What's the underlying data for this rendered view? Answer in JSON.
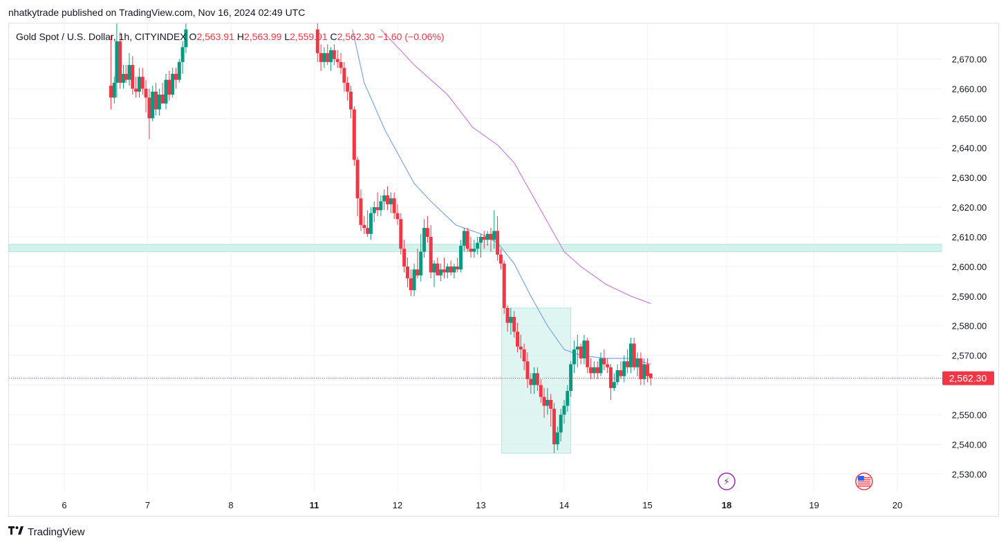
{
  "header": {
    "publisher_line": "nhatkytrade published on TradingView.com, Nov 16, 2024 02:49 UTC"
  },
  "legend": {
    "symbol": "Gold Spot / U.S. Dollar, 1h, CITYINDEX",
    "open_key": "O",
    "open": "2,563.91",
    "high_key": "H",
    "high": "2,563.99",
    "low_key": "L",
    "low": "2,559.91",
    "close_key": "C",
    "close": "2,562.30",
    "change": "−1.60 (−0.06%)"
  },
  "footer": {
    "brand": "TradingView",
    "logo_icon": "tradingview-logo-icon"
  },
  "colors": {
    "up": "#089981",
    "down": "#f23645",
    "ma_fast": "#7aa5f0",
    "ma_slow": "#d07ae3",
    "zone_fill": "#d4f2ec",
    "zone_stroke": "#b3e6da",
    "price_line": "#f23645",
    "grid": "#f0f3fa",
    "axis_text": "#131722"
  },
  "chart_data": {
    "type": "candlestick",
    "timeframe": "1h",
    "ylim": [
      2524,
      2682
    ],
    "y_ticks": [
      2530,
      2540,
      2550,
      2560,
      2570,
      2580,
      2590,
      2600,
      2610,
      2620,
      2630,
      2640,
      2650,
      2660,
      2670
    ],
    "x_ticks": [
      {
        "label": "6",
        "pos": 0.0,
        "bold": false
      },
      {
        "label": "7",
        "pos": 1.0,
        "bold": false
      },
      {
        "label": "8",
        "pos": 2.0,
        "bold": false
      },
      {
        "label": "11",
        "pos": 3.0,
        "bold": true
      },
      {
        "label": "12",
        "pos": 4.0,
        "bold": false
      },
      {
        "label": "13",
        "pos": 5.0,
        "bold": false
      },
      {
        "label": "14",
        "pos": 6.0,
        "bold": false
      },
      {
        "label": "15",
        "pos": 7.0,
        "bold": false
      },
      {
        "label": "18",
        "pos": 7.95,
        "bold": true
      },
      {
        "label": "19",
        "pos": 9.0,
        "bold": false
      },
      {
        "label": "20",
        "pos": 10.0,
        "bold": false
      }
    ],
    "last_price": 2562.3,
    "last_price_label": "2,562.30",
    "candles": [
      {
        "t": 0.56,
        "o": 2661,
        "h": 2678,
        "l": 2653,
        "c": 2657
      },
      {
        "t": 0.6,
        "o": 2657,
        "h": 2664,
        "l": 2655,
        "c": 2662
      },
      {
        "t": 0.63,
        "o": 2662,
        "h": 2682,
        "l": 2657,
        "c": 2676
      },
      {
        "t": 0.67,
        "o": 2676,
        "h": 2679,
        "l": 2660,
        "c": 2662
      },
      {
        "t": 0.71,
        "o": 2662,
        "h": 2668,
        "l": 2660,
        "c": 2665
      },
      {
        "t": 0.74,
        "o": 2665,
        "h": 2668,
        "l": 2662,
        "c": 2663
      },
      {
        "t": 0.78,
        "o": 2663,
        "h": 2672,
        "l": 2661,
        "c": 2668
      },
      {
        "t": 0.82,
        "o": 2668,
        "h": 2671,
        "l": 2658,
        "c": 2660
      },
      {
        "t": 0.86,
        "o": 2660,
        "h": 2664,
        "l": 2657,
        "c": 2659
      },
      {
        "t": 0.9,
        "o": 2659,
        "h": 2667,
        "l": 2657,
        "c": 2664
      },
      {
        "t": 0.94,
        "o": 2664,
        "h": 2667,
        "l": 2658,
        "c": 2660
      },
      {
        "t": 0.98,
        "o": 2660,
        "h": 2663,
        "l": 2652,
        "c": 2657
      },
      {
        "t": 1.02,
        "o": 2657,
        "h": 2660,
        "l": 2643,
        "c": 2650
      },
      {
        "t": 1.06,
        "o": 2650,
        "h": 2661,
        "l": 2649,
        "c": 2659
      },
      {
        "t": 1.1,
        "o": 2659,
        "h": 2662,
        "l": 2651,
        "c": 2653
      },
      {
        "t": 1.14,
        "o": 2653,
        "h": 2660,
        "l": 2651,
        "c": 2658
      },
      {
        "t": 1.18,
        "o": 2658,
        "h": 2662,
        "l": 2656,
        "c": 2655
      },
      {
        "t": 1.22,
        "o": 2655,
        "h": 2665,
        "l": 2653,
        "c": 2663
      },
      {
        "t": 1.26,
        "o": 2663,
        "h": 2666,
        "l": 2656,
        "c": 2658
      },
      {
        "t": 1.3,
        "o": 2658,
        "h": 2667,
        "l": 2657,
        "c": 2665
      },
      {
        "t": 1.34,
        "o": 2665,
        "h": 2667,
        "l": 2660,
        "c": 2663
      },
      {
        "t": 1.38,
        "o": 2663,
        "h": 2670,
        "l": 2662,
        "c": 2669
      },
      {
        "t": 1.42,
        "o": 2669,
        "h": 2676,
        "l": 2665,
        "c": 2674
      },
      {
        "t": 1.46,
        "o": 2674,
        "h": 2682,
        "l": 2672,
        "c": 2680
      },
      {
        "t": 3.04,
        "o": 2680,
        "h": 2682,
        "l": 2669,
        "c": 2672
      },
      {
        "t": 3.08,
        "o": 2672,
        "h": 2675,
        "l": 2666,
        "c": 2669
      },
      {
        "t": 3.12,
        "o": 2669,
        "h": 2674,
        "l": 2667,
        "c": 2672
      },
      {
        "t": 3.16,
        "o": 2672,
        "h": 2675,
        "l": 2668,
        "c": 2669
      },
      {
        "t": 3.2,
        "o": 2669,
        "h": 2674,
        "l": 2666,
        "c": 2673
      },
      {
        "t": 3.24,
        "o": 2673,
        "h": 2675,
        "l": 2668,
        "c": 2670
      },
      {
        "t": 3.28,
        "o": 2670,
        "h": 2673,
        "l": 2667,
        "c": 2669
      },
      {
        "t": 3.32,
        "o": 2669,
        "h": 2672,
        "l": 2665,
        "c": 2667
      },
      {
        "t": 3.36,
        "o": 2667,
        "h": 2669,
        "l": 2659,
        "c": 2662
      },
      {
        "t": 3.4,
        "o": 2662,
        "h": 2664,
        "l": 2656,
        "c": 2659
      },
      {
        "t": 3.44,
        "o": 2659,
        "h": 2661,
        "l": 2650,
        "c": 2653
      },
      {
        "t": 3.48,
        "o": 2653,
        "h": 2654,
        "l": 2634,
        "c": 2636
      },
      {
        "t": 3.52,
        "o": 2636,
        "h": 2637,
        "l": 2617,
        "c": 2623
      },
      {
        "t": 3.56,
        "o": 2623,
        "h": 2626,
        "l": 2612,
        "c": 2614
      },
      {
        "t": 3.6,
        "o": 2614,
        "h": 2617,
        "l": 2611,
        "c": 2613
      },
      {
        "t": 3.64,
        "o": 2613,
        "h": 2619,
        "l": 2610,
        "c": 2611
      },
      {
        "t": 3.68,
        "o": 2611,
        "h": 2620,
        "l": 2609,
        "c": 2618
      },
      {
        "t": 3.72,
        "o": 2618,
        "h": 2622,
        "l": 2615,
        "c": 2620
      },
      {
        "t": 3.76,
        "o": 2620,
        "h": 2625,
        "l": 2617,
        "c": 2619
      },
      {
        "t": 3.8,
        "o": 2619,
        "h": 2624,
        "l": 2617,
        "c": 2622
      },
      {
        "t": 3.84,
        "o": 2622,
        "h": 2626,
        "l": 2619,
        "c": 2624
      },
      {
        "t": 3.88,
        "o": 2624,
        "h": 2627,
        "l": 2619,
        "c": 2621
      },
      {
        "t": 3.92,
        "o": 2621,
        "h": 2625,
        "l": 2618,
        "c": 2623
      },
      {
        "t": 3.96,
        "o": 2623,
        "h": 2625,
        "l": 2616,
        "c": 2618
      },
      {
        "t": 4.0,
        "o": 2618,
        "h": 2621,
        "l": 2614,
        "c": 2616
      },
      {
        "t": 4.04,
        "o": 2616,
        "h": 2618,
        "l": 2604,
        "c": 2606
      },
      {
        "t": 4.08,
        "o": 2606,
        "h": 2609,
        "l": 2598,
        "c": 2600
      },
      {
        "t": 4.12,
        "o": 2600,
        "h": 2603,
        "l": 2593,
        "c": 2596
      },
      {
        "t": 4.16,
        "o": 2596,
        "h": 2599,
        "l": 2590,
        "c": 2592
      },
      {
        "t": 4.2,
        "o": 2592,
        "h": 2601,
        "l": 2590,
        "c": 2599
      },
      {
        "t": 4.24,
        "o": 2599,
        "h": 2606,
        "l": 2596,
        "c": 2597
      },
      {
        "t": 4.28,
        "o": 2597,
        "h": 2611,
        "l": 2595,
        "c": 2605
      },
      {
        "t": 4.32,
        "o": 2605,
        "h": 2616,
        "l": 2603,
        "c": 2613
      },
      {
        "t": 4.36,
        "o": 2613,
        "h": 2617,
        "l": 2608,
        "c": 2610
      },
      {
        "t": 4.4,
        "o": 2610,
        "h": 2614,
        "l": 2596,
        "c": 2598
      },
      {
        "t": 4.44,
        "o": 2598,
        "h": 2602,
        "l": 2593,
        "c": 2601
      },
      {
        "t": 4.48,
        "o": 2601,
        "h": 2603,
        "l": 2597,
        "c": 2597
      },
      {
        "t": 4.52,
        "o": 2597,
        "h": 2601,
        "l": 2595,
        "c": 2599
      },
      {
        "t": 4.56,
        "o": 2599,
        "h": 2603,
        "l": 2596,
        "c": 2598
      },
      {
        "t": 4.6,
        "o": 2598,
        "h": 2601,
        "l": 2596,
        "c": 2600
      },
      {
        "t": 4.64,
        "o": 2600,
        "h": 2602,
        "l": 2597,
        "c": 2598
      },
      {
        "t": 4.68,
        "o": 2598,
        "h": 2601,
        "l": 2596,
        "c": 2600
      },
      {
        "t": 4.72,
        "o": 2600,
        "h": 2603,
        "l": 2598,
        "c": 2599
      },
      {
        "t": 4.76,
        "o": 2599,
        "h": 2609,
        "l": 2598,
        "c": 2607
      },
      {
        "t": 4.8,
        "o": 2607,
        "h": 2613,
        "l": 2605,
        "c": 2612
      },
      {
        "t": 4.84,
        "o": 2612,
        "h": 2613,
        "l": 2605,
        "c": 2606
      },
      {
        "t": 4.88,
        "o": 2606,
        "h": 2610,
        "l": 2603,
        "c": 2605
      },
      {
        "t": 4.92,
        "o": 2605,
        "h": 2609,
        "l": 2603,
        "c": 2606
      },
      {
        "t": 4.96,
        "o": 2606,
        "h": 2610,
        "l": 2604,
        "c": 2608
      },
      {
        "t": 5.0,
        "o": 2608,
        "h": 2611,
        "l": 2603,
        "c": 2610
      },
      {
        "t": 5.04,
        "o": 2610,
        "h": 2612,
        "l": 2606,
        "c": 2609
      },
      {
        "t": 5.08,
        "o": 2609,
        "h": 2612,
        "l": 2607,
        "c": 2611
      },
      {
        "t": 5.12,
        "o": 2611,
        "h": 2613,
        "l": 2605,
        "c": 2609
      },
      {
        "t": 5.16,
        "o": 2609,
        "h": 2619,
        "l": 2606,
        "c": 2612
      },
      {
        "t": 5.2,
        "o": 2612,
        "h": 2617,
        "l": 2602,
        "c": 2604
      },
      {
        "t": 5.24,
        "o": 2604,
        "h": 2606,
        "l": 2599,
        "c": 2601
      },
      {
        "t": 5.28,
        "o": 2601,
        "h": 2602,
        "l": 2584,
        "c": 2586
      },
      {
        "t": 5.32,
        "o": 2586,
        "h": 2587,
        "l": 2578,
        "c": 2581
      },
      {
        "t": 5.36,
        "o": 2581,
        "h": 2586,
        "l": 2577,
        "c": 2583
      },
      {
        "t": 5.4,
        "o": 2583,
        "h": 2585,
        "l": 2576,
        "c": 2578
      },
      {
        "t": 5.44,
        "o": 2578,
        "h": 2581,
        "l": 2571,
        "c": 2573
      },
      {
        "t": 5.48,
        "o": 2573,
        "h": 2577,
        "l": 2569,
        "c": 2572
      },
      {
        "t": 5.52,
        "o": 2572,
        "h": 2574,
        "l": 2565,
        "c": 2568
      },
      {
        "t": 5.56,
        "o": 2568,
        "h": 2571,
        "l": 2559,
        "c": 2562
      },
      {
        "t": 5.6,
        "o": 2562,
        "h": 2564,
        "l": 2557,
        "c": 2560
      },
      {
        "t": 5.64,
        "o": 2560,
        "h": 2566,
        "l": 2557,
        "c": 2564
      },
      {
        "t": 5.68,
        "o": 2564,
        "h": 2566,
        "l": 2558,
        "c": 2560
      },
      {
        "t": 5.72,
        "o": 2560,
        "h": 2562,
        "l": 2554,
        "c": 2556
      },
      {
        "t": 5.76,
        "o": 2556,
        "h": 2559,
        "l": 2549,
        "c": 2553
      },
      {
        "t": 5.8,
        "o": 2553,
        "h": 2559,
        "l": 2550,
        "c": 2555
      },
      {
        "t": 5.84,
        "o": 2555,
        "h": 2557,
        "l": 2546,
        "c": 2552
      },
      {
        "t": 5.88,
        "o": 2552,
        "h": 2554,
        "l": 2537,
        "c": 2540
      },
      {
        "t": 5.92,
        "o": 2540,
        "h": 2546,
        "l": 2538,
        "c": 2544
      },
      {
        "t": 5.96,
        "o": 2544,
        "h": 2552,
        "l": 2541,
        "c": 2550
      },
      {
        "t": 6.0,
        "o": 2550,
        "h": 2555,
        "l": 2547,
        "c": 2553
      },
      {
        "t": 6.04,
        "o": 2553,
        "h": 2560,
        "l": 2551,
        "c": 2558
      },
      {
        "t": 6.08,
        "o": 2558,
        "h": 2568,
        "l": 2556,
        "c": 2567
      },
      {
        "t": 6.12,
        "o": 2567,
        "h": 2575,
        "l": 2564,
        "c": 2572
      },
      {
        "t": 6.16,
        "o": 2572,
        "h": 2577,
        "l": 2566,
        "c": 2573
      },
      {
        "t": 6.2,
        "o": 2573,
        "h": 2574,
        "l": 2567,
        "c": 2569
      },
      {
        "t": 6.24,
        "o": 2569,
        "h": 2577,
        "l": 2567,
        "c": 2575
      },
      {
        "t": 6.28,
        "o": 2575,
        "h": 2576,
        "l": 2564,
        "c": 2566
      },
      {
        "t": 6.32,
        "o": 2566,
        "h": 2569,
        "l": 2562,
        "c": 2564
      },
      {
        "t": 6.36,
        "o": 2564,
        "h": 2568,
        "l": 2562,
        "c": 2566
      },
      {
        "t": 6.4,
        "o": 2566,
        "h": 2568,
        "l": 2562,
        "c": 2564
      },
      {
        "t": 6.44,
        "o": 2564,
        "h": 2571,
        "l": 2563,
        "c": 2569
      },
      {
        "t": 6.48,
        "o": 2569,
        "h": 2572,
        "l": 2565,
        "c": 2567
      },
      {
        "t": 6.52,
        "o": 2567,
        "h": 2569,
        "l": 2564,
        "c": 2566
      },
      {
        "t": 6.56,
        "o": 2566,
        "h": 2567,
        "l": 2555,
        "c": 2559
      },
      {
        "t": 6.6,
        "o": 2559,
        "h": 2564,
        "l": 2558,
        "c": 2561
      },
      {
        "t": 6.64,
        "o": 2561,
        "h": 2567,
        "l": 2560,
        "c": 2565
      },
      {
        "t": 6.68,
        "o": 2565,
        "h": 2568,
        "l": 2562,
        "c": 2563
      },
      {
        "t": 6.72,
        "o": 2563,
        "h": 2570,
        "l": 2561,
        "c": 2568
      },
      {
        "t": 6.76,
        "o": 2568,
        "h": 2572,
        "l": 2564,
        "c": 2566
      },
      {
        "t": 6.8,
        "o": 2566,
        "h": 2576,
        "l": 2564,
        "c": 2574
      },
      {
        "t": 6.84,
        "o": 2574,
        "h": 2576,
        "l": 2565,
        "c": 2566
      },
      {
        "t": 6.88,
        "o": 2566,
        "h": 2571,
        "l": 2563,
        "c": 2569
      },
      {
        "t": 6.92,
        "o": 2569,
        "h": 2571,
        "l": 2560,
        "c": 2562
      },
      {
        "t": 6.96,
        "o": 2562,
        "h": 2569,
        "l": 2560,
        "c": 2567
      },
      {
        "t": 7.0,
        "o": 2567,
        "h": 2569,
        "l": 2561,
        "c": 2563
      },
      {
        "t": 7.04,
        "o": 2563.91,
        "h": 2563.99,
        "l": 2559.91,
        "c": 2562.3
      }
    ],
    "ma_fast": [
      [
        3.46,
        2680
      ],
      [
        3.6,
        2662
      ],
      [
        3.85,
        2646
      ],
      [
        4.2,
        2628
      ],
      [
        4.4,
        2622
      ],
      [
        4.7,
        2614
      ],
      [
        5.0,
        2611
      ],
      [
        5.2,
        2608
      ],
      [
        5.4,
        2601
      ],
      [
        5.6,
        2590
      ],
      [
        5.8,
        2580
      ],
      [
        6.0,
        2572
      ],
      [
        6.2,
        2570
      ],
      [
        6.5,
        2569
      ],
      [
        6.8,
        2569
      ],
      [
        7.04,
        2567
      ]
    ],
    "ma_slow": [
      [
        3.8,
        2680
      ],
      [
        4.2,
        2668
      ],
      [
        4.6,
        2658
      ],
      [
        4.9,
        2647
      ],
      [
        5.2,
        2641
      ],
      [
        5.4,
        2635
      ],
      [
        5.6,
        2625
      ],
      [
        5.8,
        2615
      ],
      [
        6.0,
        2605
      ],
      [
        6.2,
        2600
      ],
      [
        6.5,
        2594
      ],
      [
        6.8,
        2590
      ],
      [
        7.04,
        2587.5
      ]
    ],
    "zones": [
      {
        "kind": "horizontal_band",
        "y0": 2605,
        "y1": 2607.5
      },
      {
        "kind": "box",
        "x0": 5.25,
        "x1": 6.08,
        "y0": 2537,
        "y1": 2586
      }
    ],
    "event_icons": [
      {
        "name": "dividend-event-icon",
        "pos": 7.95,
        "glyph": "⚡"
      },
      {
        "name": "us-flag-event-icon",
        "pos": 9.6,
        "glyph": "us"
      }
    ]
  }
}
